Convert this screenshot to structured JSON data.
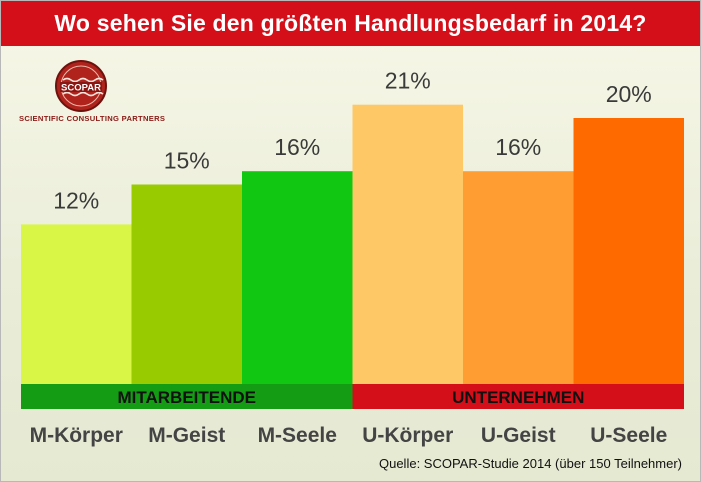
{
  "chart_data": {
    "type": "bar",
    "title": "Wo sehen Sie den größten Handlungsbedarf in 2014?",
    "categories": [
      "M-Körper",
      "M-Geist",
      "M-Seele",
      "U-Körper",
      "U-Geist",
      "U-Seele"
    ],
    "values": [
      12,
      15,
      16,
      21,
      16,
      20
    ],
    "value_labels": [
      "12%",
      "15%",
      "16%",
      "21%",
      "16%",
      "20%"
    ],
    "bar_colors": [
      "#d9f545",
      "#98cc00",
      "#11c711",
      "#ffc866",
      "#ff9d33",
      "#ff6a00"
    ],
    "groups": [
      {
        "label": "MITARBEITENDE",
        "categories": [
          "M-Körper",
          "M-Geist",
          "M-Seele"
        ],
        "color": "#149c14"
      },
      {
        "label": "UNTERNEHMEN",
        "categories": [
          "U-Körper",
          "U-Geist",
          "U-Seele"
        ],
        "color": "#d40f19"
      }
    ],
    "xlabel": "",
    "ylabel": "",
    "grid": false,
    "source": "Quelle: SCOPAR-Studie 2014 (über 150 Teilnehmer)"
  },
  "logo": {
    "name": "SCOPAR",
    "tagline": "Scientific Consulting Partners"
  },
  "colors": {
    "title_bar": "#d40f19",
    "title_text": "#ffffff"
  }
}
